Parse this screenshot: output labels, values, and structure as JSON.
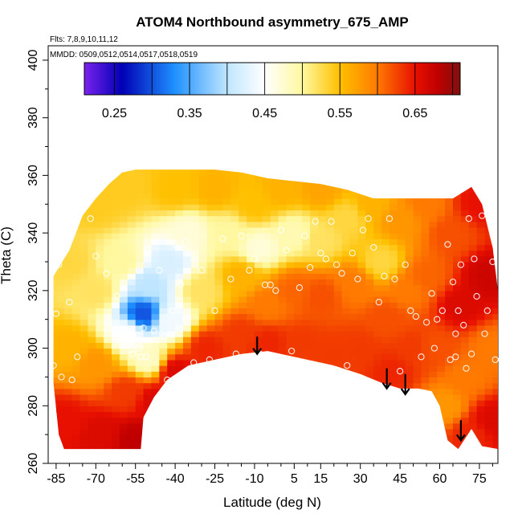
{
  "chart_data": {
    "type": "heatmap",
    "title": "ATOM4 Northbound asymmetry_675_AMP",
    "subtitle_flights": "Flts: 7,8,9,10,11,12",
    "subtitle_dates": "MMDD: 0509,0512,0514,0517,0518,0519",
    "xlabel": "Latitude (deg N)",
    "ylabel": "Theta (C)",
    "xlim": [
      -88,
      82
    ],
    "ylim": [
      260,
      405
    ],
    "x_ticks": [
      -85,
      -70,
      -55,
      -40,
      -25,
      -10,
      5,
      15,
      30,
      45,
      60,
      75
    ],
    "y_ticks": [
      260,
      280,
      300,
      320,
      340,
      360,
      380,
      400
    ],
    "colorbar": {
      "min": 0.21,
      "max": 0.71,
      "tick_values": [
        0.25,
        0.35,
        0.45,
        0.55,
        0.65
      ],
      "tick_labels": [
        "0.25",
        "0.35",
        "0.45",
        "0.55",
        "0.65"
      ],
      "stops": [
        {
          "v": 0.21,
          "color": "#7a22ee"
        },
        {
          "v": 0.26,
          "color": "#0000b4"
        },
        {
          "v": 0.33,
          "color": "#1e90ff"
        },
        {
          "v": 0.4,
          "color": "#bfe6ff"
        },
        {
          "v": 0.45,
          "color": "#ffffff"
        },
        {
          "v": 0.5,
          "color": "#fff8a0"
        },
        {
          "v": 0.55,
          "color": "#ffc000"
        },
        {
          "v": 0.6,
          "color": "#ff7a00"
        },
        {
          "v": 0.65,
          "color": "#e81000"
        },
        {
          "v": 0.68,
          "color": "#c00000"
        },
        {
          "v": 0.71,
          "color": "#801010"
        }
      ]
    },
    "field_values": [
      {
        "lat": -80,
        "theta": 330,
        "v": 0.53
      },
      {
        "lat": -80,
        "theta": 300,
        "v": 0.56
      },
      {
        "lat": -82,
        "theta": 275,
        "v": 0.65
      },
      {
        "lat": -70,
        "theta": 350,
        "v": 0.54
      },
      {
        "lat": -70,
        "theta": 320,
        "v": 0.52
      },
      {
        "lat": -70,
        "theta": 295,
        "v": 0.58
      },
      {
        "lat": -68,
        "theta": 270,
        "v": 0.66
      },
      {
        "lat": -60,
        "theta": 355,
        "v": 0.54
      },
      {
        "lat": -60,
        "theta": 330,
        "v": 0.5
      },
      {
        "lat": -58,
        "theta": 305,
        "v": 0.45
      },
      {
        "lat": -58,
        "theta": 285,
        "v": 0.63
      },
      {
        "lat": -55,
        "theta": 268,
        "v": 0.68
      },
      {
        "lat": -52,
        "theta": 312,
        "v": 0.3
      },
      {
        "lat": -50,
        "theta": 322,
        "v": 0.4
      },
      {
        "lat": -50,
        "theta": 296,
        "v": 0.48
      },
      {
        "lat": -48,
        "theta": 282,
        "v": 0.66
      },
      {
        "lat": -42,
        "theta": 330,
        "v": 0.42
      },
      {
        "lat": -42,
        "theta": 310,
        "v": 0.44
      },
      {
        "lat": -40,
        "theta": 292,
        "v": 0.66
      },
      {
        "lat": -40,
        "theta": 355,
        "v": 0.55
      },
      {
        "lat": -35,
        "theta": 340,
        "v": 0.47
      },
      {
        "lat": -30,
        "theta": 320,
        "v": 0.52
      },
      {
        "lat": -28,
        "theta": 300,
        "v": 0.64
      },
      {
        "lat": -25,
        "theta": 355,
        "v": 0.56
      },
      {
        "lat": -20,
        "theta": 340,
        "v": 0.5
      },
      {
        "lat": -15,
        "theta": 325,
        "v": 0.56
      },
      {
        "lat": -15,
        "theta": 305,
        "v": 0.63
      },
      {
        "lat": -10,
        "theta": 350,
        "v": 0.55
      },
      {
        "lat": -8,
        "theta": 335,
        "v": 0.47
      },
      {
        "lat": -5,
        "theta": 315,
        "v": 0.6
      },
      {
        "lat": -5,
        "theta": 302,
        "v": 0.64
      },
      {
        "lat": 0,
        "theta": 355,
        "v": 0.56
      },
      {
        "lat": 5,
        "theta": 340,
        "v": 0.49
      },
      {
        "lat": 5,
        "theta": 320,
        "v": 0.61
      },
      {
        "lat": 8,
        "theta": 302,
        "v": 0.63
      },
      {
        "lat": 15,
        "theta": 355,
        "v": 0.57
      },
      {
        "lat": 15,
        "theta": 338,
        "v": 0.52
      },
      {
        "lat": 15,
        "theta": 318,
        "v": 0.62
      },
      {
        "lat": 20,
        "theta": 298,
        "v": 0.63
      },
      {
        "lat": 25,
        "theta": 345,
        "v": 0.53
      },
      {
        "lat": 28,
        "theta": 322,
        "v": 0.6
      },
      {
        "lat": 30,
        "theta": 300,
        "v": 0.63
      },
      {
        "lat": 35,
        "theta": 350,
        "v": 0.56
      },
      {
        "lat": 38,
        "theta": 330,
        "v": 0.53
      },
      {
        "lat": 40,
        "theta": 310,
        "v": 0.62
      },
      {
        "lat": 42,
        "theta": 292,
        "v": 0.64
      },
      {
        "lat": 45,
        "theta": 345,
        "v": 0.58
      },
      {
        "lat": 48,
        "theta": 320,
        "v": 0.6
      },
      {
        "lat": 50,
        "theta": 300,
        "v": 0.63
      },
      {
        "lat": 55,
        "theta": 350,
        "v": 0.6
      },
      {
        "lat": 55,
        "theta": 325,
        "v": 0.61
      },
      {
        "lat": 58,
        "theta": 300,
        "v": 0.62
      },
      {
        "lat": 62,
        "theta": 280,
        "v": 0.58
      },
      {
        "lat": 65,
        "theta": 340,
        "v": 0.62
      },
      {
        "lat": 68,
        "theta": 315,
        "v": 0.66
      },
      {
        "lat": 70,
        "theta": 290,
        "v": 0.6
      },
      {
        "lat": 72,
        "theta": 270,
        "v": 0.64
      },
      {
        "lat": 75,
        "theta": 350,
        "v": 0.65
      },
      {
        "lat": 78,
        "theta": 325,
        "v": 0.67
      },
      {
        "lat": 80,
        "theta": 300,
        "v": 0.6
      },
      {
        "lat": 80,
        "theta": 275,
        "v": 0.66
      }
    ],
    "coverage_top": [
      [
        -86,
        325
      ],
      [
        -80,
        334
      ],
      [
        -75,
        346
      ],
      [
        -70,
        352
      ],
      [
        -65,
        357
      ],
      [
        -60,
        361
      ],
      [
        -55,
        362
      ],
      [
        -45,
        362
      ],
      [
        -35,
        362
      ],
      [
        -25,
        362
      ],
      [
        -15,
        361
      ],
      [
        -5,
        359
      ],
      [
        5,
        358
      ],
      [
        15,
        357
      ],
      [
        25,
        355
      ],
      [
        35,
        352
      ],
      [
        45,
        352
      ],
      [
        55,
        352
      ],
      [
        65,
        352
      ],
      [
        72,
        356
      ],
      [
        76,
        350
      ],
      [
        80,
        335
      ],
      [
        82,
        320
      ]
    ],
    "coverage_bottom": [
      [
        -86,
        288
      ],
      [
        -84,
        270
      ],
      [
        -82,
        265
      ],
      [
        -75,
        265
      ],
      [
        -65,
        265
      ],
      [
        -53,
        265
      ],
      [
        -52,
        276
      ],
      [
        -48,
        283
      ],
      [
        -43,
        289
      ],
      [
        -35,
        294
      ],
      [
        -25,
        296
      ],
      [
        -15,
        298
      ],
      [
        -5,
        299
      ],
      [
        0,
        298
      ],
      [
        10,
        296
      ],
      [
        20,
        294
      ],
      [
        30,
        291
      ],
      [
        38,
        288
      ],
      [
        45,
        286
      ],
      [
        52,
        286
      ],
      [
        57,
        285
      ],
      [
        60,
        280
      ],
      [
        63,
        268
      ],
      [
        67,
        265
      ],
      [
        72,
        272
      ],
      [
        76,
        266
      ],
      [
        82,
        265
      ]
    ],
    "observation_points": [
      [
        -86,
        294
      ],
      [
        -85,
        312
      ],
      [
        -84,
        329
      ],
      [
        -83,
        290
      ],
      [
        -80,
        316
      ],
      [
        -79,
        289
      ],
      [
        -77,
        297
      ],
      [
        -72,
        345
      ],
      [
        -70,
        332
      ],
      [
        -66,
        326
      ],
      [
        -62,
        318
      ],
      [
        -58,
        301
      ],
      [
        -56,
        298
      ],
      [
        -54,
        300
      ],
      [
        -53,
        297
      ],
      [
        -52,
        307
      ],
      [
        -51,
        297
      ],
      [
        -50,
        276
      ],
      [
        -48,
        306
      ],
      [
        -47,
        280
      ],
      [
        -46,
        327
      ],
      [
        -44,
        304
      ],
      [
        -43,
        289
      ],
      [
        -41,
        313
      ],
      [
        -40,
        336
      ],
      [
        -38,
        322
      ],
      [
        -36,
        337
      ],
      [
        -33,
        295
      ],
      [
        -30,
        327
      ],
      [
        -27,
        296
      ],
      [
        -25,
        313
      ],
      [
        -22,
        338
      ],
      [
        -19,
        324
      ],
      [
        -17,
        298
      ],
      [
        -15,
        339
      ],
      [
        -12,
        327
      ],
      [
        -10,
        331
      ],
      [
        -8,
        298
      ],
      [
        -6,
        322
      ],
      [
        -4,
        322
      ],
      [
        -2,
        320
      ],
      [
        0,
        341
      ],
      [
        2,
        334
      ],
      [
        4,
        299
      ],
      [
        7,
        321
      ],
      [
        9,
        339
      ],
      [
        11,
        328
      ],
      [
        13,
        344
      ],
      [
        15,
        333
      ],
      [
        17,
        331
      ],
      [
        19,
        344
      ],
      [
        21,
        329
      ],
      [
        23,
        326
      ],
      [
        25,
        294
      ],
      [
        27,
        333
      ],
      [
        29,
        324
      ],
      [
        31,
        341
      ],
      [
        33,
        345
      ],
      [
        35,
        335
      ],
      [
        37,
        316
      ],
      [
        39,
        325
      ],
      [
        41,
        345
      ],
      [
        43,
        324
      ],
      [
        45,
        292
      ],
      [
        47,
        329
      ],
      [
        49,
        313
      ],
      [
        51,
        311
      ],
      [
        53,
        297
      ],
      [
        55,
        309
      ],
      [
        57,
        319
      ],
      [
        59,
        310
      ],
      [
        61,
        313
      ],
      [
        63,
        336
      ],
      [
        64,
        296
      ],
      [
        65,
        323
      ],
      [
        66,
        297
      ],
      [
        67,
        313
      ],
      [
        68,
        329
      ],
      [
        69,
        308
      ],
      [
        70,
        293
      ],
      [
        71,
        345
      ],
      [
        72,
        298
      ],
      [
        73,
        331
      ],
      [
        74,
        318
      ],
      [
        75,
        356
      ],
      [
        76,
        346
      ],
      [
        77,
        305
      ],
      [
        78,
        313
      ],
      [
        79,
        349
      ],
      [
        80,
        330
      ],
      [
        81,
        296
      ],
      [
        73,
        267
      ],
      [
        79,
        264
      ],
      [
        66,
        305
      ],
      [
        58,
        300
      ]
    ],
    "arrows": [
      {
        "lat": -9,
        "theta_from": 304,
        "theta_to": 298
      },
      {
        "lat": 40,
        "theta_from": 293,
        "theta_to": 286
      },
      {
        "lat": 47,
        "theta_from": 291,
        "theta_to": 284
      },
      {
        "lat": 68,
        "theta_from": 275,
        "theta_to": 268
      }
    ]
  }
}
